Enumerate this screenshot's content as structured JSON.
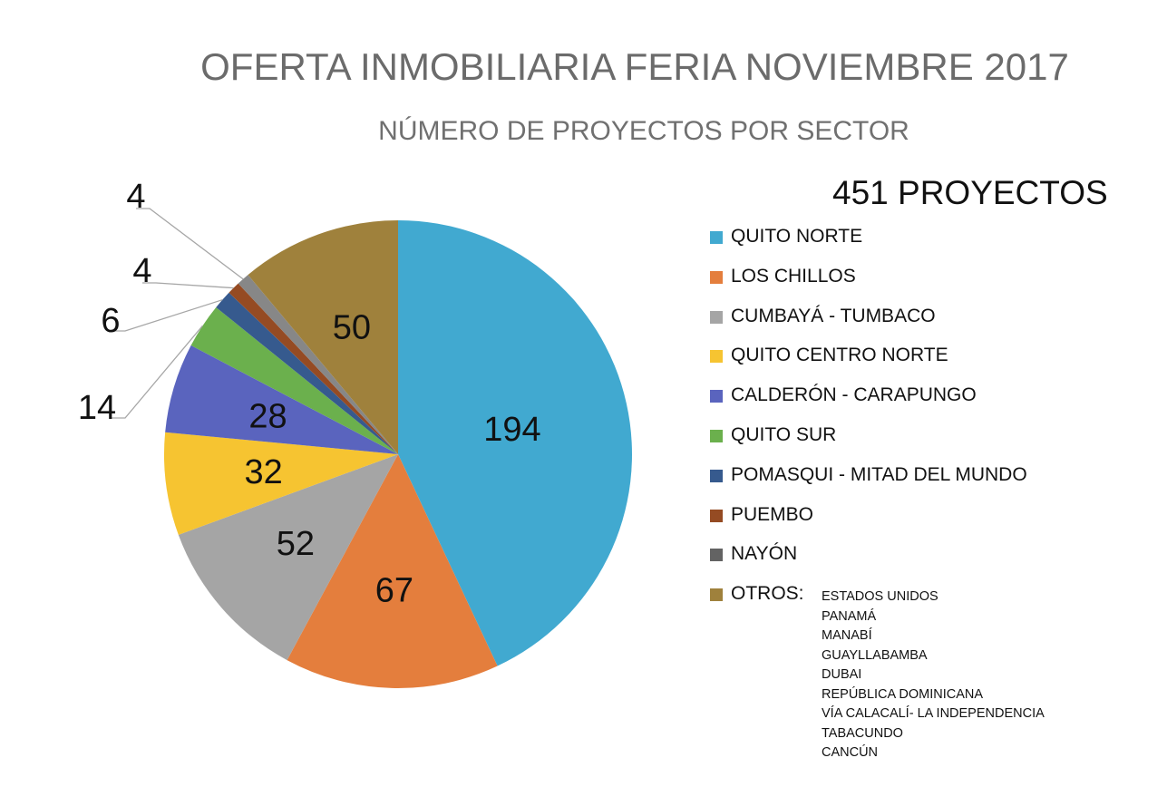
{
  "chart_data": {
    "type": "pie",
    "title": "OFERTA INMOBILIARIA FERIA NOVIEMBRE 2017",
    "subtitle": "NÚMERO DE PROYECTOS POR SECTOR",
    "total_label": "451 PROYECTOS",
    "legend_position": "right",
    "slices": [
      {
        "label": "QUITO NORTE",
        "value": 194,
        "color": "#41A9D0",
        "legend_color": "#41A9D0"
      },
      {
        "label": "LOS CHILLOS",
        "value": 67,
        "color": "#E47E3D",
        "legend_color": "#E47E3D"
      },
      {
        "label": "CUMBAYÁ - TUMBACO",
        "value": 52,
        "color": "#A5A5A5",
        "legend_color": "#A5A5A5"
      },
      {
        "label": "QUITO CENTRO NORTE",
        "value": 32,
        "color": "#F6C431",
        "legend_color": "#F6C431"
      },
      {
        "label": "CALDERÓN - CARAPUNGO",
        "value": 28,
        "color": "#5A64BE",
        "legend_color": "#5A64BE"
      },
      {
        "label": "QUITO SUR",
        "value": 14,
        "color": "#6BB04D",
        "legend_color": "#6BB04D"
      },
      {
        "label": "POMASQUI - MITAD DEL MUNDO",
        "value": 6,
        "color": "#365A8E",
        "legend_color": "#365A8E"
      },
      {
        "label": "PUEMBO",
        "value": 4,
        "color": "#954B23",
        "legend_color": "#954B23"
      },
      {
        "label": "NAYÓN",
        "value": 4,
        "color": "#878787",
        "legend_color": "#636363"
      },
      {
        "label": "OTROS:",
        "value": 50,
        "color": "#9F813C",
        "legend_color": "#9F813C"
      }
    ],
    "others_list": [
      "ESTADOS UNIDOS",
      "PANAMÁ",
      "MANABÍ",
      "GUAYLLABAMBA",
      "DUBAI",
      "REPÚBLICA DOMINICANA",
      "VÍA CALACALÍ- LA INDEPENDENCIA",
      "TABACUNDO",
      "CANCÚN"
    ]
  }
}
